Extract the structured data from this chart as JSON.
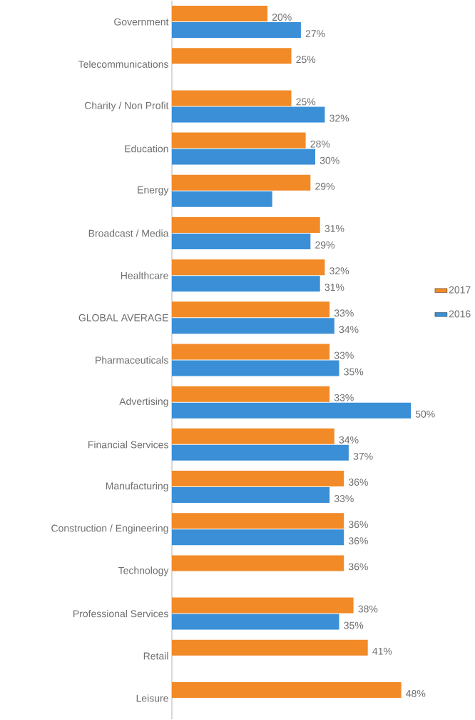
{
  "chart_data": {
    "type": "bar",
    "orientation": "horizontal",
    "legend": "right",
    "categories": [
      "Government",
      "Telecommunications",
      "Charity / Non Profit",
      "Education",
      "Energy",
      "Broadcast / Media",
      "Healthcare",
      "GLOBAL AVERAGE",
      "Pharmaceuticals",
      "Advertising",
      "Financial Services",
      "Manufacturing",
      "Construction / Engineering",
      "Technology",
      "Professional Services",
      "Retail",
      "Leisure"
    ],
    "series": [
      {
        "name": "2017",
        "color": "#f28a27",
        "values": [
          20,
          25,
          25,
          28,
          29,
          31,
          32,
          33,
          33,
          33,
          34,
          36,
          36,
          36,
          38,
          41,
          48
        ],
        "value_labels": [
          "20%",
          "25%",
          "25%",
          "28%",
          "29%",
          "31%",
          "32%",
          "33%",
          "33%",
          "33%",
          "34%",
          "36%",
          "36%",
          "36%",
          "38%",
          "41%",
          "48%"
        ]
      },
      {
        "name": "2016",
        "color": "#3a8fd6",
        "values": [
          27,
          null,
          32,
          30,
          21,
          29,
          31,
          34,
          35,
          50,
          37,
          33,
          36,
          null,
          35,
          null,
          null
        ],
        "value_labels": [
          "27%",
          null,
          "32%",
          "30%",
          null,
          "29%",
          "31%",
          "34%",
          "35%",
          "50%",
          "37%",
          "33%",
          "36%",
          null,
          "35%",
          null,
          null
        ]
      }
    ]
  }
}
